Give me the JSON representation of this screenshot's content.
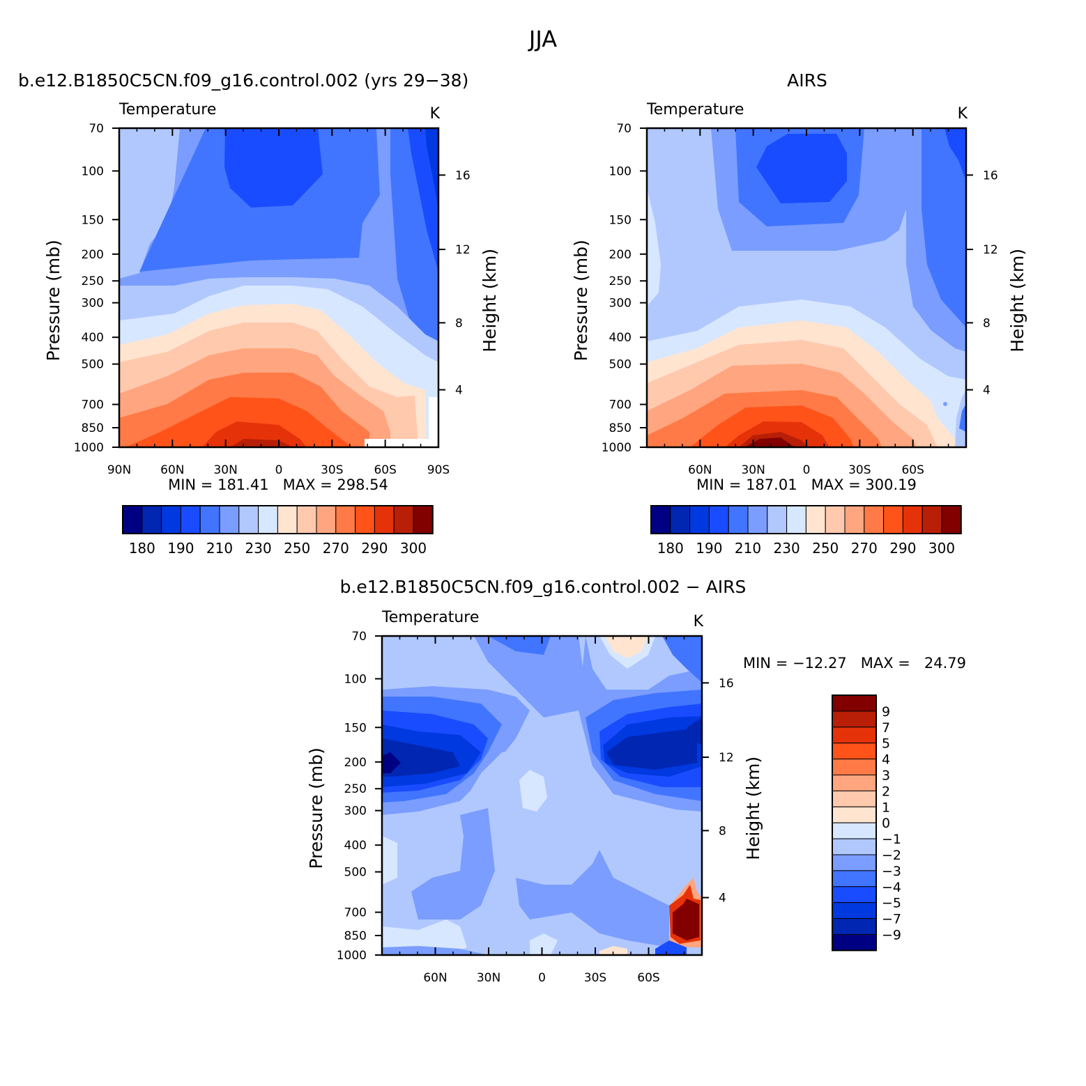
{
  "figure_title": "JJA",
  "colors": {
    "cool": [
      "#000082",
      "#0026b2",
      "#0039e0",
      "#1a4cff",
      "#4275ff",
      "#7a9dff",
      "#b1c8ff",
      "#d7e7ff"
    ],
    "warm": [
      "#ffe4d0",
      "#ffc9ad",
      "#ffa57f",
      "#ff7a46",
      "#ff531a",
      "#e63209",
      "#b81f06",
      "#820000"
    ]
  },
  "chart_data": [
    {
      "type": "contour",
      "title": "b.e12.B1850C5CN.f09_g16.control.002 (yrs 29−38)",
      "variable": "Temperature",
      "units": "K",
      "ylabel": "Pressure (mb)",
      "ylabel_right": "Height (km)",
      "x_ticks": [
        "90N",
        "60N",
        "30N",
        "0",
        "30S",
        "60S",
        "90S"
      ],
      "y_ticks": [
        "70",
        "100",
        "150",
        "200",
        "250",
        "300",
        "400",
        "500",
        "700",
        "850",
        "1000"
      ],
      "right_ticks": [
        "16",
        "12",
        "8",
        "4"
      ],
      "stats": "MIN = 181.41   MAX = 298.54",
      "levels": [
        180,
        185,
        190,
        200,
        210,
        220,
        230,
        240,
        250,
        260,
        270,
        280,
        290,
        295,
        300
      ],
      "colorbar_labels": [
        "180",
        "190",
        "210",
        "230",
        "250",
        "270",
        "290",
        "300"
      ]
    },
    {
      "type": "contour",
      "title": "AIRS",
      "variable": "Temperature",
      "units": "K",
      "ylabel": "Pressure (mb)",
      "ylabel_right": "Height (km)",
      "x_ticks": [
        "60N",
        "30N",
        "0",
        "30S",
        "60S"
      ],
      "y_ticks": [
        "70",
        "100",
        "150",
        "200",
        "250",
        "300",
        "400",
        "500",
        "700",
        "850",
        "1000"
      ],
      "right_ticks": [
        "16",
        "12",
        "8",
        "4"
      ],
      "stats": "MIN = 187.01   MAX = 300.19",
      "levels": [
        180,
        185,
        190,
        200,
        210,
        220,
        230,
        240,
        250,
        260,
        270,
        280,
        290,
        295,
        300
      ],
      "colorbar_labels": [
        "180",
        "190",
        "210",
        "230",
        "250",
        "270",
        "290",
        "300"
      ]
    },
    {
      "type": "contour",
      "title": "b.e12.B1850C5CN.f09_g16.control.002 − AIRS",
      "variable": "Temperature",
      "units": "K",
      "ylabel": "Pressure (mb)",
      "ylabel_right": "Height (km)",
      "x_ticks": [
        "60N",
        "30N",
        "0",
        "30S",
        "60S"
      ],
      "y_ticks": [
        "70",
        "100",
        "150",
        "200",
        "250",
        "300",
        "400",
        "500",
        "700",
        "850",
        "1000"
      ],
      "right_ticks": [
        "16",
        "12",
        "8",
        "4"
      ],
      "stats": "MIN = −12.27   MAX =   24.79",
      "colorbar_labels": [
        "9",
        "7",
        "5",
        "4",
        "3",
        "2",
        "1",
        "0",
        "−1",
        "−2",
        "−3",
        "−4",
        "−5",
        "−7",
        "−9"
      ]
    }
  ]
}
